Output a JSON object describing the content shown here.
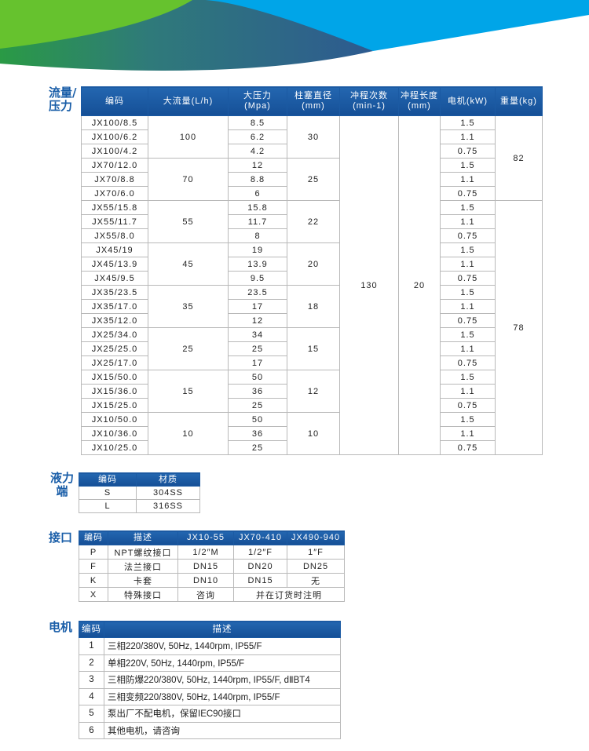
{
  "colors": {
    "accent": "#1a5ea8",
    "header_bg": "#1b5aa3",
    "banner_green": "#66c22e",
    "banner_blue": "#00a5e8",
    "banner_dark": "#2d6090"
  },
  "sections": {
    "flow_pressure": "流量/\n压力",
    "liquid_end": "液力端",
    "connection": "接口",
    "motor": "电机"
  },
  "main_table": {
    "headers": [
      [
        "编码"
      ],
      [
        "大流量(L/h)"
      ],
      [
        "大压力",
        "(Mpa)"
      ],
      [
        "柱塞直径",
        "(mm)"
      ],
      [
        "冲程次数",
        "(min-1)"
      ],
      [
        "冲程长度",
        "(mm)"
      ],
      [
        "电机(kW)"
      ],
      [
        "重量(kg)"
      ]
    ],
    "stroke_rate": "130",
    "stroke_length": "20",
    "weights": [
      {
        "value": "82",
        "rows": 6
      },
      {
        "value": "78",
        "rows": 18
      }
    ],
    "groups": [
      {
        "flow": "100",
        "diameter": "30",
        "rows": [
          [
            "JX100/8.5",
            "8.5",
            "1.5"
          ],
          [
            "JX100/6.2",
            "6.2",
            "1.1"
          ],
          [
            "JX100/4.2",
            "4.2",
            "0.75"
          ]
        ]
      },
      {
        "flow": "70",
        "diameter": "25",
        "rows": [
          [
            "JX70/12.0",
            "12",
            "1.5"
          ],
          [
            "JX70/8.8",
            "8.8",
            "1.1"
          ],
          [
            "JX70/6.0",
            "6",
            "0.75"
          ]
        ]
      },
      {
        "flow": "55",
        "diameter": "22",
        "rows": [
          [
            "JX55/15.8",
            "15.8",
            "1.5"
          ],
          [
            "JX55/11.7",
            "11.7",
            "1.1"
          ],
          [
            "JX55/8.0",
            "8",
            "0.75"
          ]
        ]
      },
      {
        "flow": "45",
        "diameter": "20",
        "rows": [
          [
            "JX45/19",
            "19",
            "1.5"
          ],
          [
            "JX45/13.9",
            "13.9",
            "1.1"
          ],
          [
            "JX45/9.5",
            "9.5",
            "0.75"
          ]
        ]
      },
      {
        "flow": "35",
        "diameter": "18",
        "rows": [
          [
            "JX35/23.5",
            "23.5",
            "1.5"
          ],
          [
            "JX35/17.0",
            "17",
            "1.1"
          ],
          [
            "JX35/12.0",
            "12",
            "0.75"
          ]
        ]
      },
      {
        "flow": "25",
        "diameter": "15",
        "rows": [
          [
            "JX25/34.0",
            "34",
            "1.5"
          ],
          [
            "JX25/25.0",
            "25",
            "1.1"
          ],
          [
            "JX25/17.0",
            "17",
            "0.75"
          ]
        ]
      },
      {
        "flow": "15",
        "diameter": "12",
        "rows": [
          [
            "JX15/50.0",
            "50",
            "1.5"
          ],
          [
            "JX15/36.0",
            "36",
            "1.1"
          ],
          [
            "JX15/25.0",
            "25",
            "0.75"
          ]
        ]
      },
      {
        "flow": "10",
        "diameter": "10",
        "rows": [
          [
            "JX10/50.0",
            "50",
            "1.5"
          ],
          [
            "JX10/36.0",
            "36",
            "1.1"
          ],
          [
            "JX10/25.0",
            "25",
            "0.75"
          ]
        ]
      }
    ]
  },
  "liquid_end_table": {
    "headers": [
      "编码",
      "材质"
    ],
    "rows": [
      [
        "S",
        "304SS"
      ],
      [
        "L",
        "316SS"
      ]
    ]
  },
  "connection_table": {
    "headers": [
      "编码",
      "描述",
      "JX10-55",
      "JX70-410",
      "JX490-940"
    ],
    "rows": [
      [
        "P",
        "NPT螺纹接口",
        "1/2″M",
        "1/2″F",
        "1″F"
      ],
      [
        "F",
        "法兰接口",
        "DN15",
        "DN20",
        "DN25"
      ],
      [
        "K",
        "卡套",
        "DN10",
        "DN15",
        "无"
      ]
    ],
    "last_row": {
      "code": "X",
      "desc": "特殊接口",
      "a": "咨询",
      "note": "并在订货时注明"
    }
  },
  "motor_table": {
    "headers": [
      "编码",
      "描述"
    ],
    "rows": [
      [
        "1",
        "三相220/380V, 50Hz, 1440rpm, IP55/F"
      ],
      [
        "2",
        "单相220V, 50Hz, 1440rpm, IP55/F"
      ],
      [
        "3",
        "三相防爆220/380V, 50Hz, 1440rpm, IP55/F, dⅡBT4"
      ],
      [
        "4",
        "三相变频220/380V, 50Hz, 1440rpm, IP55/F"
      ],
      [
        "5",
        "泵出厂不配电机，保留IEC90接口"
      ],
      [
        "6",
        "其他电机，请咨询"
      ]
    ]
  }
}
